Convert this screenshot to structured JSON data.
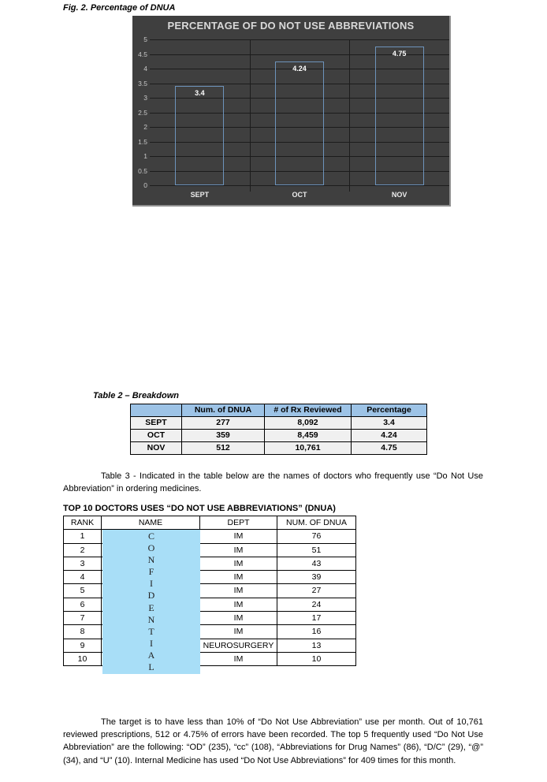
{
  "page": {
    "fig_label": "Fig. 2. Percentage of DNUA",
    "table3_caption": "Table 3 - Indicated in the table below are the names of doctors who frequently use “Do Not Use Abbreviation” in ordering medicines.",
    "footer_paragraph": "The target is to have less than 10% of “Do Not Use Abbreviation” use per month. Out of 10,761 reviewed prescriptions, 512 or 4.75% of errors have been recorded. The top 5 frequently used “Do Not Use Abbreviation” are the following: “OD” (235), “cc” (108), “Abbreviations for Drug Names” (86), “D/C” (29), “@” (34), and “U” (10). Internal Medicine has used “Do Not Use Abbreviations” for 409 times for this month."
  },
  "chart_data": {
    "type": "bar",
    "title": "PERCENTAGE OF DO NOT USE ABBREVIATIONS",
    "categories": [
      "SEPT",
      "OCT",
      "NOV"
    ],
    "values": [
      3.4,
      4.24,
      4.75
    ],
    "data_labels": [
      "3.4",
      "4.24",
      "4.75"
    ],
    "ylim": [
      0,
      5
    ],
    "ytick_step": 0.5,
    "yticks": [
      "5",
      "4.5",
      "4",
      "3.5",
      "3",
      "2.5",
      "2",
      "1.5",
      "1",
      "0.5",
      "0"
    ],
    "grid": true,
    "legend": "none",
    "colors": {
      "background": "#3F3F3F",
      "title_text": "#D9D9D9",
      "gridline": "#1C1C1C",
      "bar_border": "#6D93BB",
      "tick_text": "#C6C6C6",
      "data_label_text": "#FFFFFF"
    }
  },
  "table2": {
    "title": "Table 2 – Breakdown",
    "headers": [
      "",
      "Num. of DNUA",
      "# of Rx Reviewed",
      "Percentage"
    ],
    "rows": [
      [
        "SEPT",
        "277",
        "8,092",
        "3.4"
      ],
      [
        "OCT",
        "359",
        "8,459",
        "4.24"
      ],
      [
        "NOV",
        "512",
        "10,761",
        "4.75"
      ]
    ],
    "header_bg": "#9DC3E6",
    "cell_bg": "#F0F0F0"
  },
  "top10": {
    "heading": "TOP 10 DOCTORS USES “DO NOT USE ABBREVIATIONS” (DNUA)",
    "headers": [
      "RANK",
      "NAME",
      "DEPT",
      "NUM. OF DNUA"
    ],
    "rows": [
      {
        "rank": "1",
        "name": "",
        "dept": "IM",
        "num": "76"
      },
      {
        "rank": "2",
        "name": "",
        "dept": "IM",
        "num": "51"
      },
      {
        "rank": "3",
        "name": "",
        "dept": "IM",
        "num": "43"
      },
      {
        "rank": "4",
        "name": "",
        "dept": "IM",
        "num": "39"
      },
      {
        "rank": "5",
        "name": "",
        "dept": "IM",
        "num": "27"
      },
      {
        "rank": "6",
        "name": "",
        "dept": "IM",
        "num": "24"
      },
      {
        "rank": "7",
        "name": "",
        "dept": "IM",
        "num": "17"
      },
      {
        "rank": "8",
        "name": "",
        "dept": "IM",
        "num": "16"
      },
      {
        "rank": "9",
        "name": "",
        "dept": "NEUROSURGERY",
        "num": "13"
      },
      {
        "rank": "10",
        "name": "",
        "dept": "IM",
        "num": "10"
      }
    ],
    "overlay_text": "CONFIDENTIAL",
    "overlay_bg": "#A8DEF7"
  }
}
